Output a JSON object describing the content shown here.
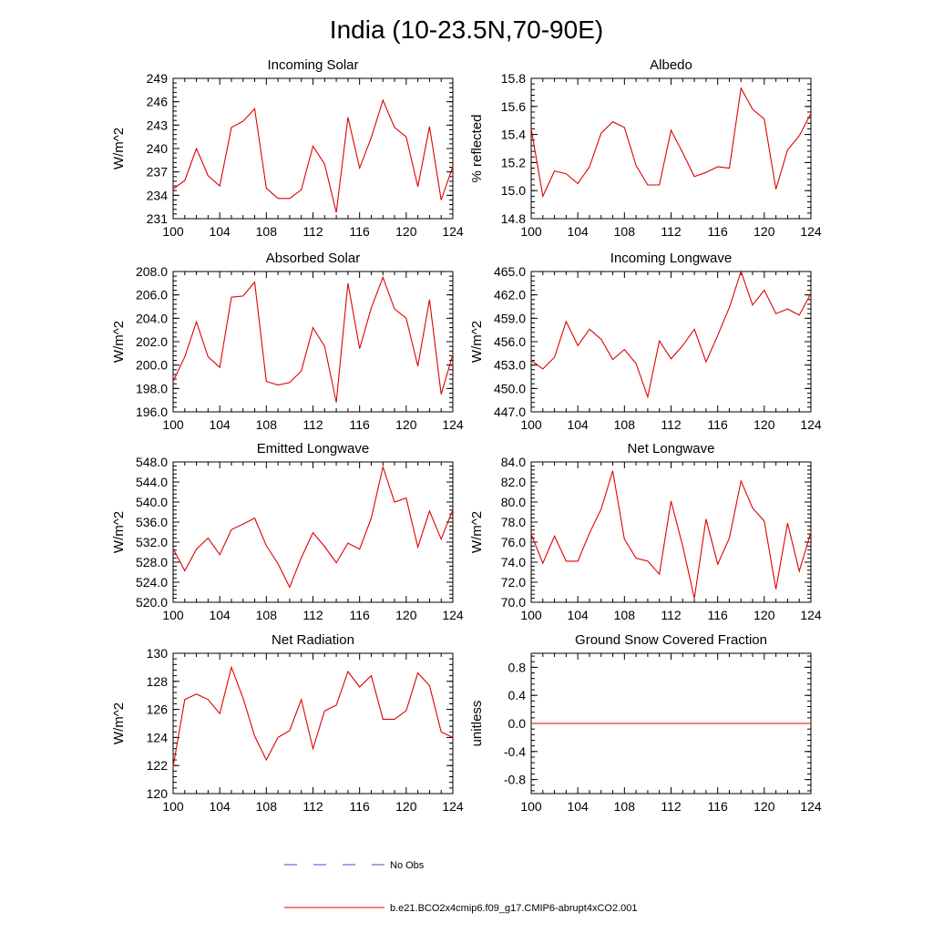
{
  "figure": {
    "title": "India (10-23.5N,70-90E)"
  },
  "legend": {
    "items": [
      {
        "label": "No Obs",
        "color": "#4a4ad0",
        "dash": "dashed"
      },
      {
        "label": "b.e21.BCO2x4cmip6.f09_g17.CMIP6-abrupt4xCO2.001",
        "color": "#e00000",
        "dash": "solid"
      }
    ]
  },
  "colors": {
    "series": "#e00000",
    "axis": "#000000"
  },
  "chart_data": [
    {
      "type": "line",
      "title": "Incoming Solar",
      "ylabel": "W/m^2",
      "xlim": [
        100,
        124
      ],
      "ylim": [
        231,
        249
      ],
      "xticks": [
        "100",
        "104",
        "108",
        "112",
        "116",
        "120",
        "124"
      ],
      "yticks": [
        "231",
        "234",
        "237",
        "240",
        "243",
        "246",
        "249"
      ],
      "x": [
        100,
        101,
        102,
        103,
        104,
        105,
        106,
        107,
        108,
        109,
        110,
        111,
        112,
        113,
        114,
        115,
        116,
        117,
        118,
        119,
        120,
        121,
        122,
        123,
        124
      ],
      "series": [
        {
          "values": [
            234.8,
            235.9,
            240.0,
            236.5,
            235.2,
            242.7,
            243.5,
            245.1,
            234.9,
            233.6,
            233.6,
            234.7,
            240.3,
            238.0,
            231.8,
            244.0,
            237.5,
            241.4,
            246.2,
            242.7,
            241.5,
            235.1,
            242.8,
            233.4,
            237.7
          ]
        }
      ]
    },
    {
      "type": "line",
      "title": "Albedo",
      "ylabel": "% reflected",
      "xlim": [
        100,
        124
      ],
      "ylim": [
        14.8,
        15.8
      ],
      "xticks": [
        "100",
        "104",
        "108",
        "112",
        "116",
        "120",
        "124"
      ],
      "yticks": [
        "14.8",
        "15.0",
        "15.2",
        "15.4",
        "15.6",
        "15.8"
      ],
      "x": [
        100,
        101,
        102,
        103,
        104,
        105,
        106,
        107,
        108,
        109,
        110,
        111,
        112,
        113,
        114,
        115,
        116,
        117,
        118,
        119,
        120,
        121,
        122,
        123,
        124
      ],
      "series": [
        {
          "values": [
            15.44,
            14.96,
            15.14,
            15.12,
            15.05,
            15.17,
            15.41,
            15.49,
            15.45,
            15.18,
            15.04,
            15.04,
            15.43,
            15.27,
            15.1,
            15.13,
            15.17,
            15.16,
            15.73,
            15.58,
            15.51,
            15.01,
            15.29,
            15.39,
            15.55
          ]
        }
      ]
    },
    {
      "type": "line",
      "title": "Absorbed Solar",
      "ylabel": "W/m^2",
      "xlim": [
        100,
        124
      ],
      "ylim": [
        196,
        208
      ],
      "xticks": [
        "100",
        "104",
        "108",
        "112",
        "116",
        "120",
        "124"
      ],
      "yticks": [
        "196.0",
        "198.0",
        "200.0",
        "202.0",
        "204.0",
        "206.0",
        "208.0"
      ],
      "x": [
        100,
        101,
        102,
        103,
        104,
        105,
        106,
        107,
        108,
        109,
        110,
        111,
        112,
        113,
        114,
        115,
        116,
        117,
        118,
        119,
        120,
        121,
        122,
        123,
        124
      ],
      "series": [
        {
          "values": [
            198.6,
            200.7,
            203.7,
            200.7,
            199.8,
            205.8,
            205.9,
            207.1,
            198.6,
            198.3,
            198.5,
            199.5,
            203.2,
            201.6,
            196.8,
            207.0,
            201.4,
            204.9,
            207.5,
            204.8,
            204.0,
            199.9,
            205.6,
            197.5,
            200.9
          ]
        }
      ]
    },
    {
      "type": "line",
      "title": "Incoming Longwave",
      "ylabel": "W/m^2",
      "xlim": [
        100,
        124
      ],
      "ylim": [
        447,
        465
      ],
      "xticks": [
        "100",
        "104",
        "108",
        "112",
        "116",
        "120",
        "124"
      ],
      "yticks": [
        "447.0",
        "450.0",
        "453.0",
        "456.0",
        "459.0",
        "462.0",
        "465.0"
      ],
      "x": [
        100,
        101,
        102,
        103,
        104,
        105,
        106,
        107,
        108,
        109,
        110,
        111,
        112,
        113,
        114,
        115,
        116,
        117,
        118,
        119,
        120,
        121,
        122,
        123,
        124
      ],
      "series": [
        {
          "values": [
            453.6,
            452.5,
            454.0,
            458.6,
            455.5,
            457.6,
            456.3,
            453.7,
            455.0,
            453.2,
            448.9,
            456.1,
            453.8,
            455.5,
            457.6,
            453.4,
            456.8,
            460.4,
            465.0,
            460.7,
            462.6,
            459.6,
            460.2,
            459.4,
            462.2
          ]
        }
      ]
    },
    {
      "type": "line",
      "title": "Emitted Longwave",
      "ylabel": "W/m^2",
      "xlim": [
        100,
        124
      ],
      "ylim": [
        520,
        548
      ],
      "xticks": [
        "100",
        "104",
        "108",
        "112",
        "116",
        "120",
        "124"
      ],
      "yticks": [
        "520.0",
        "524.0",
        "528.0",
        "532.0",
        "536.0",
        "540.0",
        "544.0",
        "548.0"
      ],
      "x": [
        100,
        101,
        102,
        103,
        104,
        105,
        106,
        107,
        108,
        109,
        110,
        111,
        112,
        113,
        114,
        115,
        116,
        117,
        118,
        119,
        120,
        121,
        122,
        123,
        124
      ],
      "series": [
        {
          "values": [
            530.7,
            526.3,
            530.6,
            532.8,
            529.5,
            534.5,
            535.6,
            536.8,
            531.3,
            527.7,
            523.0,
            528.9,
            533.9,
            531.1,
            527.9,
            531.8,
            530.6,
            536.8,
            547.0,
            540.0,
            540.8,
            531.0,
            538.2,
            532.6,
            538.5
          ]
        }
      ]
    },
    {
      "type": "line",
      "title": "Net Longwave",
      "ylabel": "W/m^2",
      "xlim": [
        100,
        124
      ],
      "ylim": [
        70,
        84
      ],
      "xticks": [
        "100",
        "104",
        "108",
        "112",
        "116",
        "120",
        "124"
      ],
      "yticks": [
        "70.0",
        "72.0",
        "74.0",
        "76.0",
        "78.0",
        "80.0",
        "82.0",
        "84.0"
      ],
      "x": [
        100,
        101,
        102,
        103,
        104,
        105,
        106,
        107,
        108,
        109,
        110,
        111,
        112,
        113,
        114,
        115,
        116,
        117,
        118,
        119,
        120,
        121,
        122,
        123,
        124
      ],
      "series": [
        {
          "values": [
            76.8,
            73.9,
            76.6,
            74.1,
            74.1,
            76.9,
            79.3,
            83.1,
            76.3,
            74.4,
            74.1,
            72.8,
            80.1,
            75.6,
            70.4,
            78.3,
            73.8,
            76.4,
            82.1,
            79.4,
            78.1,
            71.3,
            77.9,
            73.1,
            77.0
          ]
        }
      ]
    },
    {
      "type": "line",
      "title": "Net Radiation",
      "ylabel": "W/m^2",
      "xlim": [
        100,
        124
      ],
      "ylim": [
        120,
        130
      ],
      "xticks": [
        "100",
        "104",
        "108",
        "112",
        "116",
        "120",
        "124"
      ],
      "yticks": [
        "120",
        "122",
        "124",
        "126",
        "128",
        "130"
      ],
      "x": [
        100,
        101,
        102,
        103,
        104,
        105,
        106,
        107,
        108,
        109,
        110,
        111,
        112,
        113,
        114,
        115,
        116,
        117,
        118,
        119,
        120,
        121,
        122,
        123,
        124
      ],
      "series": [
        {
          "values": [
            121.9,
            126.7,
            127.1,
            126.7,
            125.7,
            129.0,
            126.8,
            124.1,
            122.4,
            124.0,
            124.5,
            126.7,
            123.2,
            125.9,
            126.3,
            128.7,
            127.6,
            128.4,
            125.3,
            125.3,
            125.9,
            128.6,
            127.7,
            124.4,
            124.0
          ]
        }
      ]
    },
    {
      "type": "line",
      "title": "Ground Snow Covered Fraction",
      "ylabel": "unitless",
      "xlim": [
        100,
        124
      ],
      "ylim": [
        -1.0,
        1.0
      ],
      "xticks": [
        "100",
        "104",
        "108",
        "112",
        "116",
        "120",
        "124"
      ],
      "yticks": [
        "-0.8",
        "-0.4",
        "0.0",
        "0.4",
        "0.8"
      ],
      "x": [
        100,
        101,
        102,
        103,
        104,
        105,
        106,
        107,
        108,
        109,
        110,
        111,
        112,
        113,
        114,
        115,
        116,
        117,
        118,
        119,
        120,
        121,
        122,
        123,
        124
      ],
      "series": [
        {
          "values": [
            0,
            0,
            0,
            0,
            0,
            0,
            0,
            0,
            0,
            0,
            0,
            0,
            0,
            0,
            0,
            0,
            0,
            0,
            0,
            0,
            0,
            0,
            0,
            0,
            0
          ]
        }
      ]
    }
  ]
}
